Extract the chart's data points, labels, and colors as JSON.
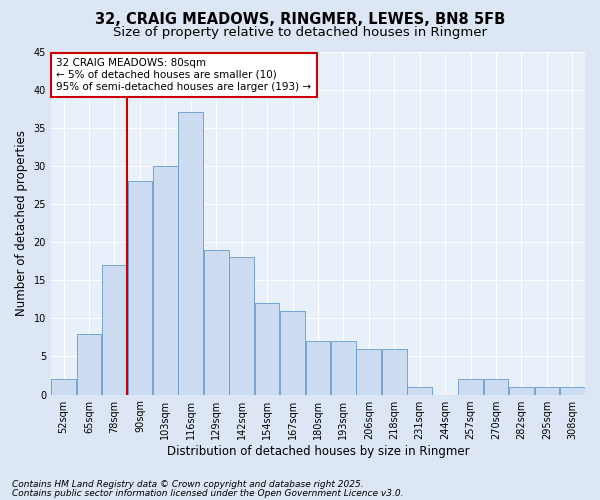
{
  "title1": "32, CRAIG MEADOWS, RINGMER, LEWES, BN8 5FB",
  "title2": "Size of property relative to detached houses in Ringmer",
  "xlabel": "Distribution of detached houses by size in Ringmer",
  "ylabel": "Number of detached properties",
  "footer1": "Contains HM Land Registry data © Crown copyright and database right 2025.",
  "footer2": "Contains public sector information licensed under the Open Government Licence v3.0.",
  "categories": [
    "52sqm",
    "65sqm",
    "78sqm",
    "90sqm",
    "103sqm",
    "116sqm",
    "129sqm",
    "142sqm",
    "154sqm",
    "167sqm",
    "180sqm",
    "193sqm",
    "206sqm",
    "218sqm",
    "231sqm",
    "244sqm",
    "257sqm",
    "270sqm",
    "282sqm",
    "295sqm",
    "308sqm"
  ],
  "values": [
    2,
    8,
    17,
    28,
    30,
    37,
    19,
    18,
    12,
    11,
    7,
    7,
    6,
    6,
    1,
    0,
    2,
    2,
    1,
    1,
    1
  ],
  "bar_color": "#cddcf0",
  "bar_edge_color": "#6699cc",
  "vline_x_index": 2.5,
  "vline_color": "#cc0000",
  "annotation_text": "32 CRAIG MEADOWS: 80sqm\n← 5% of detached houses are smaller (10)\n95% of semi-detached houses are larger (193) →",
  "annotation_box_color": "#ffffff",
  "annotation_box_edge": "#cc0000",
  "ylim": [
    0,
    45
  ],
  "yticks": [
    0,
    5,
    10,
    15,
    20,
    25,
    30,
    35,
    40,
    45
  ],
  "bg_color": "#dce6f5",
  "plot_bg_color": "#e8f0fa",
  "grid_color": "#ffffff",
  "title_fontsize": 10.5,
  "subtitle_fontsize": 9.5,
  "axis_label_fontsize": 8.5,
  "tick_fontsize": 7,
  "annotation_fontsize": 7.5,
  "footer_fontsize": 6.5
}
